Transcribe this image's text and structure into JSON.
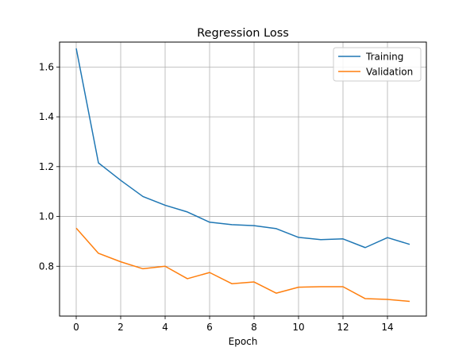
{
  "chart_data": {
    "type": "line",
    "title": "Regression Loss",
    "xlabel": "Epoch",
    "ylabel": "",
    "x": [
      0,
      1,
      2,
      3,
      4,
      5,
      6,
      7,
      8,
      9,
      10,
      11,
      12,
      13,
      14,
      15
    ],
    "series": [
      {
        "name": "Training",
        "color": "#1f77b4",
        "values": [
          1.675,
          1.215,
          1.145,
          1.08,
          1.045,
          1.018,
          0.977,
          0.967,
          0.963,
          0.951,
          0.916,
          0.907,
          0.91,
          0.875,
          0.915,
          0.888
        ]
      },
      {
        "name": "Validation",
        "color": "#ff7f0e",
        "values": [
          0.953,
          0.852,
          0.818,
          0.79,
          0.8,
          0.75,
          0.775,
          0.73,
          0.737,
          0.692,
          0.716,
          0.718,
          0.718,
          0.67,
          0.667,
          0.659
        ]
      }
    ],
    "xlim": [
      -0.75,
      15.75
    ],
    "ylim": [
      0.6,
      1.7
    ],
    "xticks": [
      0,
      2,
      4,
      6,
      8,
      10,
      12,
      14
    ],
    "yticks": [
      0.8,
      1.0,
      1.2,
      1.4,
      1.6
    ],
    "xtick_labels": [
      "0",
      "2",
      "4",
      "6",
      "8",
      "10",
      "12",
      "14"
    ],
    "ytick_labels": [
      "0.8",
      "1.0",
      "1.2",
      "1.4",
      "1.6"
    ],
    "grid": true,
    "legend_position": "top-right"
  }
}
